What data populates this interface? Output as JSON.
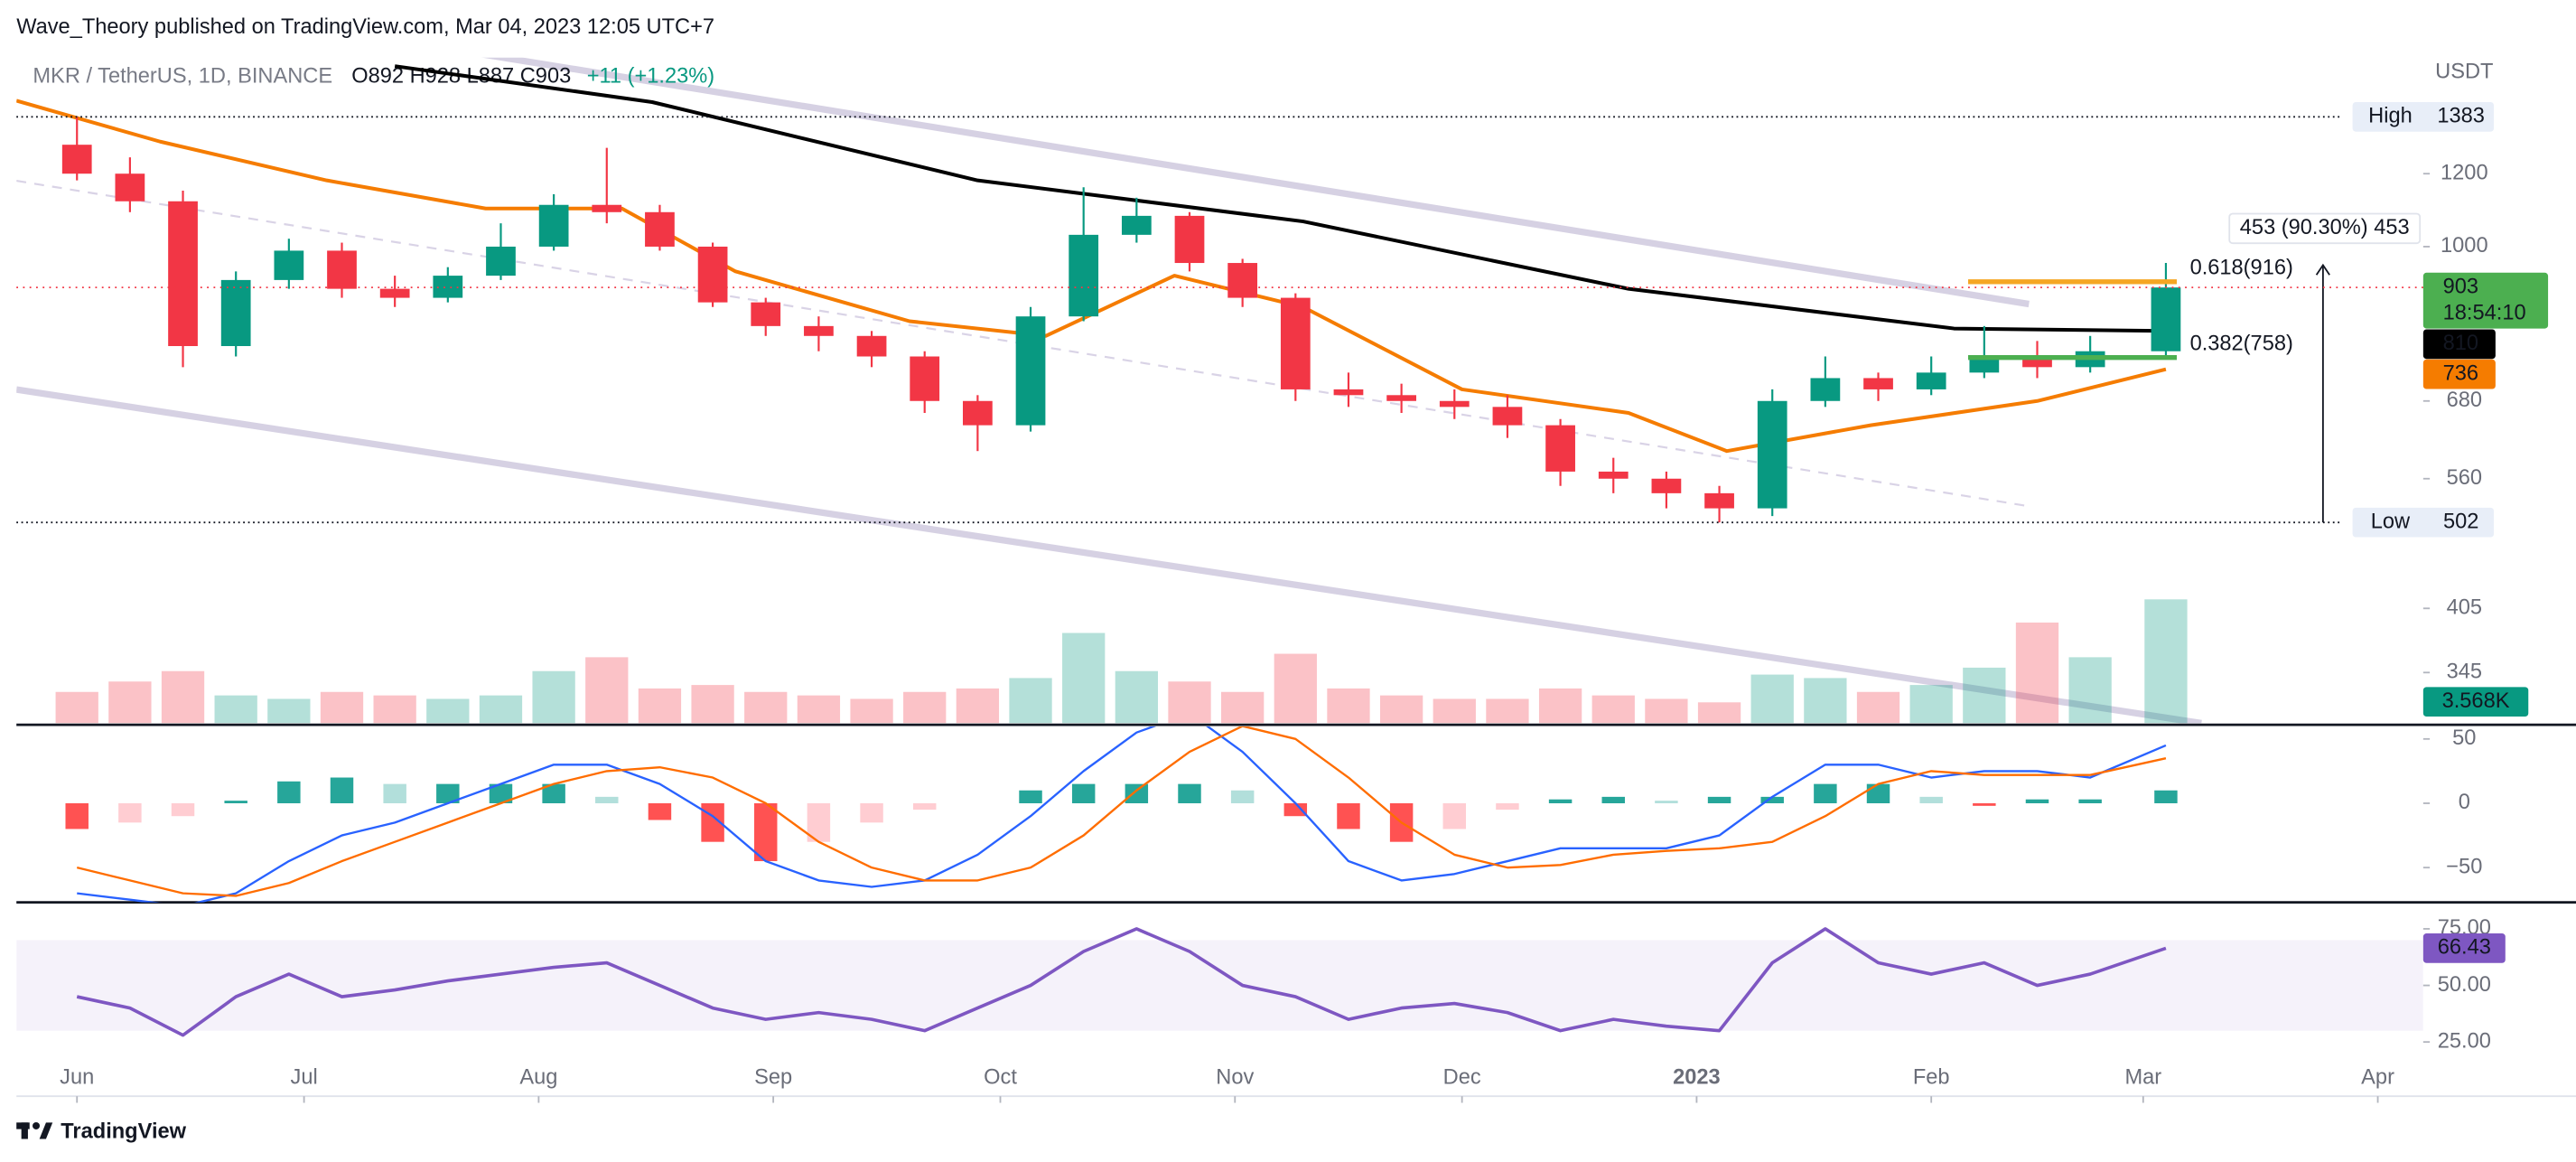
{
  "header": {
    "publisher": "Wave_Theory published on TradingView.com, Mar 04, 2023 12:05 UTC+7",
    "symbol": "MKR / TetherUS, 1D, BINANCE",
    "ohlc": "O892 H928 L887 C903",
    "change": "+11 (+1.23%)",
    "logo": "TradingView"
  },
  "chart_data": [
    {
      "type": "candlestick",
      "unit": "USDT",
      "x": [
        0,
        7,
        14,
        21,
        28,
        35,
        42,
        49,
        56,
        63,
        70,
        77,
        84,
        91,
        98,
        105,
        112,
        119,
        126,
        133,
        140,
        147,
        154,
        161,
        168,
        175,
        182,
        189,
        196,
        203,
        210,
        217,
        224,
        231,
        238,
        245,
        252,
        259,
        266,
        276
      ],
      "open": [
        1290,
        1200,
        1120,
        780,
        920,
        990,
        900,
        880,
        930,
        1000,
        1110,
        1090,
        1000,
        870,
        820,
        800,
        760,
        680,
        640,
        840,
        1030,
        1080,
        960,
        880,
        700,
        690,
        680,
        670,
        640,
        570,
        560,
        540,
        520,
        680,
        720,
        700,
        730,
        760,
        740,
        770
      ],
      "high": [
        1383,
        1250,
        1150,
        940,
        1020,
        1010,
        930,
        950,
        1060,
        1140,
        1280,
        1110,
        1010,
        880,
        840,
        810,
        770,
        690,
        860,
        1160,
        1130,
        1090,
        970,
        890,
        730,
        710,
        700,
        690,
        650,
        590,
        570,
        550,
        700,
        760,
        730,
        760,
        820,
        790,
        800,
        960
      ],
      "low": [
        1180,
        1090,
        740,
        760,
        900,
        880,
        860,
        870,
        920,
        990,
        1060,
        990,
        860,
        800,
        770,
        740,
        660,
        600,
        630,
        830,
        1010,
        940,
        860,
        680,
        670,
        660,
        650,
        620,
        550,
        540,
        520,
        502,
        510,
        670,
        680,
        690,
        720,
        720,
        730,
        760
      ],
      "close": [
        1200,
        1120,
        780,
        920,
        990,
        900,
        880,
        930,
        1000,
        1110,
        1090,
        1000,
        870,
        820,
        800,
        760,
        680,
        640,
        840,
        1030,
        1080,
        960,
        880,
        700,
        690,
        680,
        670,
        640,
        570,
        560,
        540,
        520,
        680,
        720,
        700,
        730,
        760,
        740,
        770,
        903
      ],
      "up_color": "#089981",
      "down_color": "#f23645",
      "xlim": [
        -8,
        310
      ],
      "xticks": [
        {
          "value": 0,
          "label": "Jun"
        },
        {
          "value": 30,
          "label": "Jul"
        },
        {
          "value": 61,
          "label": "Aug"
        },
        {
          "value": 92,
          "label": "Sep"
        },
        {
          "value": 122,
          "label": "Oct"
        },
        {
          "value": 153,
          "label": "Nov"
        },
        {
          "value": 183,
          "label": "Dec"
        },
        {
          "value": 214,
          "label": "2023"
        },
        {
          "value": 245,
          "label": "Feb"
        },
        {
          "value": 273,
          "label": "Mar"
        },
        {
          "value": 304,
          "label": "Apr"
        }
      ],
      "ylim": [
        304,
        1604
      ],
      "log_scale": true,
      "yticks": [
        345,
        405,
        560,
        680,
        1000,
        1200
      ],
      "countdown": "18:54:10",
      "lines": [
        {
          "color": "#000000",
          "x": [
            42,
            76,
            119,
            162,
            205,
            248,
            276
          ],
          "values": [
            1570,
            1435,
            1180,
            1065,
            900,
            815,
            810
          ]
        },
        {
          "color": "#f57c00",
          "x": [
            -8,
            11,
            33,
            54,
            72,
            87,
            110,
            128,
            145,
            162,
            183,
            205,
            218,
            237,
            259,
            276
          ],
          "values": [
            1440,
            1300,
            1180,
            1100,
            1100,
            940,
            830,
            800,
            930,
            860,
            700,
            660,
            600,
            640,
            680,
            736
          ]
        }
      ],
      "levels": [
        {
          "label": "High",
          "value": 1383
        },
        {
          "label": "Low",
          "value": 502
        }
      ],
      "fib": [
        {
          "label": "0.618(916)",
          "value": 916,
          "color": "#f5a623"
        },
        {
          "label": "0.382(758)",
          "value": 758,
          "color": "#4caf50"
        }
      ],
      "measure": {
        "from": 502,
        "to": 955,
        "label": "453 (90.30%) 453"
      },
      "volume": {
        "values": [
          0.9,
          1.2,
          1.5,
          0.8,
          0.7,
          0.9,
          0.8,
          0.7,
          0.8,
          1.5,
          1.9,
          1.0,
          1.1,
          0.9,
          0.8,
          0.7,
          0.9,
          1.0,
          1.3,
          2.6,
          1.5,
          1.2,
          0.9,
          2.0,
          1.0,
          0.8,
          0.7,
          0.7,
          1.0,
          0.8,
          0.7,
          0.6,
          1.4,
          1.3,
          0.9,
          1.1,
          1.6,
          2.9,
          1.9,
          3.568
        ],
        "ylim": [
          0,
          4.5
        ],
        "last_label": "3.568K"
      }
    },
    {
      "type": "macd",
      "x": [
        0,
        7,
        14,
        21,
        28,
        35,
        42,
        49,
        56,
        63,
        70,
        77,
        84,
        91,
        98,
        105,
        112,
        119,
        126,
        133,
        140,
        147,
        154,
        161,
        168,
        175,
        182,
        189,
        196,
        203,
        210,
        217,
        224,
        231,
        238,
        245,
        252,
        259,
        266,
        276
      ],
      "series": [
        {
          "color": "#2962ff",
          "values": [
            -70,
            -75,
            -80,
            -70,
            -45,
            -25,
            -15,
            0,
            15,
            30,
            30,
            15,
            -10,
            -45,
            -60,
            -65,
            -60,
            -40,
            -10,
            25,
            55,
            70,
            40,
            0,
            -45,
            -60,
            -55,
            -45,
            -35,
            -35,
            -35,
            -25,
            5,
            30,
            30,
            20,
            25,
            25,
            20,
            45
          ]
        },
        {
          "color": "#ff6d00",
          "values": [
            -50,
            -60,
            -70,
            -72,
            -62,
            -45,
            -30,
            -15,
            0,
            15,
            25,
            28,
            20,
            0,
            -30,
            -50,
            -60,
            -60,
            -50,
            -25,
            10,
            40,
            60,
            50,
            20,
            -15,
            -40,
            -50,
            -48,
            -40,
            -37,
            -35,
            -30,
            -10,
            15,
            25,
            22,
            22,
            22,
            35
          ]
        }
      ],
      "histogram": [
        -20,
        -15,
        -10,
        2,
        17,
        20,
        15,
        15,
        15,
        15,
        5,
        -13,
        -30,
        -45,
        -30,
        -15,
        -5,
        0,
        10,
        15,
        15,
        15,
        10,
        -10,
        -20,
        -30,
        -20,
        -5,
        3,
        5,
        2,
        5,
        5,
        15,
        15,
        5,
        -2,
        3,
        3,
        10
      ],
      "ylim": [
        -77,
        61
      ],
      "yticks": [
        {
          "value": -50,
          "label": "−50"
        },
        0,
        50
      ]
    },
    {
      "type": "line",
      "x": [
        0,
        7,
        14,
        21,
        28,
        35,
        42,
        49,
        56,
        63,
        70,
        77,
        84,
        91,
        98,
        105,
        112,
        119,
        126,
        133,
        140,
        147,
        154,
        161,
        168,
        175,
        182,
        189,
        196,
        203,
        210,
        217,
        224,
        231,
        238,
        245,
        252,
        259,
        266,
        276
      ],
      "values": [
        45,
        40,
        28,
        45,
        55,
        45,
        48,
        52,
        55,
        58,
        60,
        50,
        40,
        35,
        38,
        35,
        30,
        40,
        50,
        65,
        75,
        65,
        50,
        45,
        35,
        40,
        42,
        38,
        30,
        35,
        32,
        30,
        60,
        75,
        60,
        55,
        60,
        50,
        55,
        66.43
      ],
      "color": "#7e57c2",
      "band": [
        30,
        70
      ],
      "ylim": [
        17,
        86
      ],
      "yticks": [
        {
          "value": 25,
          "label": "25.00"
        },
        {
          "value": 50,
          "label": "50.00"
        },
        {
          "value": 75,
          "label": "75.00"
        }
      ]
    }
  ]
}
